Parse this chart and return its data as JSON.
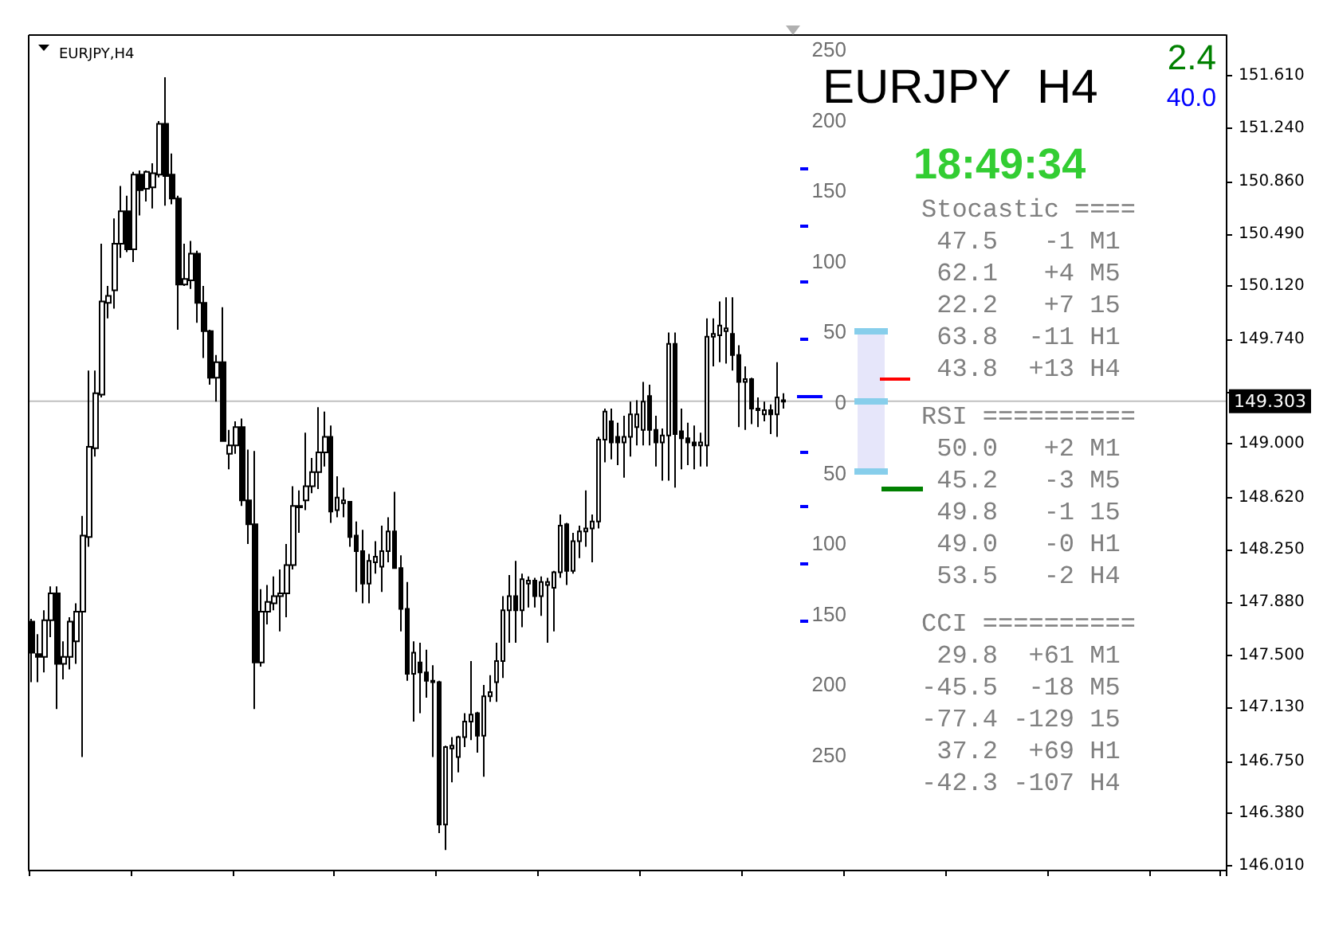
{
  "chart_data": {
    "type": "candlestick",
    "title": "EURJPY,H4",
    "categories": [
      null,
      null,
      null,
      null,
      null,
      null,
      null,
      null,
      null,
      null,
      null,
      null,
      null,
      null,
      null,
      null,
      null,
      null,
      null,
      null,
      null,
      null,
      null,
      null,
      null,
      null,
      null,
      null,
      null,
      null,
      null,
      null,
      null,
      null,
      null,
      null,
      null,
      null,
      null,
      null,
      null,
      null,
      null,
      null,
      null,
      null,
      null,
      null,
      null,
      null,
      null,
      null,
      null,
      null,
      null,
      null,
      null,
      null,
      null,
      null,
      null,
      null,
      null,
      null,
      null,
      null,
      null,
      null,
      null,
      null,
      null,
      null,
      null,
      null,
      null,
      null,
      null,
      null,
      null,
      null,
      null,
      null,
      null,
      null,
      null,
      null,
      null,
      null,
      null,
      null,
      null,
      null,
      null,
      null,
      null,
      null,
      null,
      null,
      null,
      null,
      null,
      null,
      null,
      null,
      null,
      null,
      null,
      null,
      null,
      null,
      null,
      null,
      null,
      null,
      null,
      null,
      null,
      null,
      null,
      null,
      null,
      null,
      null,
      null,
      null,
      null,
      null,
      null,
      null,
      null,
      null,
      null,
      null,
      null,
      null,
      null,
      null,
      null,
      null,
      null,
      null,
      null,
      null,
      null,
      null,
      null,
      null,
      null,
      null,
      null,
      null,
      null,
      null,
      null,
      null,
      null,
      null,
      null,
      null,
      null,
      null,
      null,
      null,
      null,
      null,
      null,
      null,
      null,
      null,
      null,
      null,
      null,
      null,
      null,
      null,
      null,
      null,
      null,
      null,
      null,
      null,
      null,
      null,
      null,
      null,
      null,
      null,
      null
    ],
    "ohlc": [
      [
        147.74,
        147.76,
        147.31,
        147.52
      ],
      [
        147.51,
        147.65,
        147.31,
        147.49
      ],
      [
        147.49,
        147.82,
        147.38,
        147.75
      ],
      [
        147.75,
        147.99,
        147.63,
        147.94
      ],
      [
        147.94,
        147.99,
        147.12,
        147.44
      ],
      [
        147.44,
        147.6,
        147.33,
        147.49
      ],
      [
        147.49,
        147.77,
        147.4,
        147.74
      ],
      [
        147.6,
        147.87,
        147.44,
        147.81
      ],
      [
        147.81,
        148.49,
        146.78,
        148.35
      ],
      [
        148.34,
        149.52,
        148.27,
        148.98
      ],
      [
        148.97,
        149.52,
        148.91,
        149.36
      ],
      [
        149.35,
        150.42,
        149.33,
        150.01
      ],
      [
        150.0,
        150.12,
        149.89,
        150.05
      ],
      [
        150.09,
        150.6,
        149.96,
        150.42
      ],
      [
        150.42,
        150.83,
        150.32,
        150.65
      ],
      [
        150.65,
        150.76,
        150.36,
        150.38
      ],
      [
        150.38,
        150.93,
        150.29,
        150.91
      ],
      [
        150.91,
        150.94,
        150.62,
        150.8
      ],
      [
        150.81,
        150.94,
        150.72,
        150.93
      ],
      [
        150.82,
        150.99,
        150.67,
        150.92
      ],
      [
        150.91,
        151.29,
        150.89,
        151.27
      ],
      [
        151.27,
        151.6,
        150.69,
        150.9
      ],
      [
        150.91,
        151.06,
        150.7,
        150.74
      ],
      [
        150.74,
        150.76,
        149.81,
        150.13
      ],
      [
        150.13,
        150.42,
        150.12,
        150.17
      ],
      [
        150.16,
        150.44,
        150.1,
        150.35
      ],
      [
        150.35,
        150.37,
        149.86,
        150.0
      ],
      [
        150.0,
        150.12,
        149.61,
        149.8
      ],
      [
        149.8,
        149.81,
        149.42,
        149.47
      ],
      [
        149.47,
        149.63,
        149.3,
        149.58
      ],
      [
        149.58,
        149.97,
        149.02,
        149.02
      ],
      [
        148.93,
        149.1,
        148.82,
        148.99
      ],
      [
        148.99,
        149.16,
        148.93,
        149.12
      ],
      [
        149.12,
        149.18,
        148.56,
        148.6
      ],
      [
        148.6,
        148.96,
        148.29,
        148.43
      ],
      [
        148.43,
        148.95,
        147.12,
        147.45
      ],
      [
        147.45,
        147.97,
        147.42,
        147.81
      ],
      [
        147.81,
        148.0,
        147.72,
        147.88
      ],
      [
        147.87,
        148.06,
        147.82,
        147.92
      ],
      [
        147.92,
        148.11,
        147.67,
        147.94
      ],
      [
        147.94,
        148.29,
        147.77,
        148.14
      ],
      [
        148.14,
        148.7,
        148.11,
        148.56
      ],
      [
        148.55,
        148.67,
        148.37,
        148.56
      ],
      [
        148.6,
        149.08,
        148.53,
        148.7
      ],
      [
        148.7,
        148.9,
        148.65,
        148.8
      ],
      [
        148.8,
        149.26,
        148.68,
        148.94
      ],
      [
        148.94,
        149.23,
        148.84,
        149.05
      ],
      [
        149.05,
        149.13,
        148.44,
        148.52
      ],
      [
        148.53,
        148.77,
        148.48,
        148.62
      ],
      [
        148.58,
        148.69,
        148.48,
        148.6
      ],
      [
        148.59,
        148.59,
        148.27,
        148.34
      ],
      [
        148.35,
        148.45,
        147.95,
        148.24
      ],
      [
        148.24,
        148.39,
        147.87,
        148.01
      ],
      [
        148.01,
        148.22,
        147.87,
        148.17
      ],
      [
        148.16,
        148.31,
        148.08,
        148.2
      ],
      [
        148.13,
        148.42,
        147.95,
        148.24
      ],
      [
        148.24,
        148.48,
        148.16,
        148.38
      ],
      [
        148.38,
        148.66,
        148.12,
        148.12
      ],
      [
        148.12,
        148.21,
        147.67,
        147.83
      ],
      [
        147.83,
        148.02,
        147.32,
        147.37
      ],
      [
        147.37,
        147.6,
        147.03,
        147.52
      ],
      [
        147.45,
        147.59,
        147.09,
        147.38
      ],
      [
        147.38,
        147.54,
        147.2,
        147.32
      ],
      [
        147.32,
        147.43,
        146.78,
        147.31
      ],
      [
        147.31,
        147.32,
        146.24,
        146.3
      ],
      [
        146.3,
        146.86,
        146.12,
        146.85
      ],
      [
        146.84,
        146.92,
        146.6,
        146.86
      ],
      [
        146.78,
        146.93,
        146.67,
        146.92
      ],
      [
        146.92,
        147.09,
        146.85,
        147.03
      ],
      [
        147.03,
        147.46,
        146.9,
        147.08
      ],
      [
        147.09,
        147.1,
        146.81,
        146.93
      ],
      [
        146.93,
        147.29,
        146.64,
        147.21
      ],
      [
        147.21,
        147.36,
        147.17,
        147.24
      ],
      [
        147.31,
        147.59,
        147.17,
        147.46
      ],
      [
        147.46,
        147.92,
        147.34,
        147.82
      ],
      [
        147.82,
        148.07,
        147.59,
        147.92
      ],
      [
        147.92,
        148.17,
        147.59,
        147.82
      ],
      [
        147.82,
        148.08,
        147.7,
        148.04
      ],
      [
        148.01,
        148.06,
        147.84,
        148.03
      ],
      [
        148.03,
        148.05,
        147.84,
        147.92
      ],
      [
        147.92,
        148.06,
        147.78,
        148.02
      ],
      [
        148.0,
        148.05,
        147.59,
        148.02
      ],
      [
        147.98,
        148.1,
        147.67,
        148.09
      ],
      [
        148.09,
        148.5,
        148.05,
        148.42
      ],
      [
        148.43,
        148.44,
        148.0,
        148.1
      ],
      [
        148.1,
        148.37,
        148.08,
        148.31
      ],
      [
        148.31,
        148.42,
        148.19,
        148.38
      ],
      [
        148.38,
        148.67,
        148.27,
        148.4
      ],
      [
        148.4,
        148.5,
        148.16,
        148.45
      ],
      [
        148.45,
        149.05,
        148.4,
        149.03
      ],
      [
        149.03,
        149.25,
        148.87,
        149.23
      ],
      [
        149.16,
        149.25,
        148.89,
        149.01
      ],
      [
        149.05,
        149.15,
        148.85,
        149.01
      ],
      [
        149.01,
        149.2,
        148.76,
        149.05
      ],
      [
        149.05,
        149.3,
        148.91,
        149.21
      ],
      [
        149.12,
        149.31,
        148.99,
        149.21
      ],
      [
        149.1,
        149.44,
        148.99,
        149.3
      ],
      [
        149.34,
        149.42,
        148.99,
        149.1
      ],
      [
        149.1,
        149.2,
        148.84,
        149.01
      ],
      [
        149.01,
        149.11,
        148.74,
        149.06
      ],
      [
        149.06,
        149.79,
        148.74,
        149.71
      ],
      [
        149.71,
        149.79,
        148.69,
        149.07
      ],
      [
        149.09,
        149.25,
        148.82,
        149.04
      ],
      [
        149.04,
        149.15,
        148.85,
        149.01
      ],
      [
        149.01,
        149.13,
        148.82,
        148.99
      ],
      [
        148.99,
        149.08,
        148.84,
        149.01
      ],
      [
        148.99,
        149.89,
        148.84,
        149.76
      ],
      [
        149.76,
        149.89,
        149.55,
        149.78
      ],
      [
        149.77,
        150.01,
        149.58,
        149.84
      ],
      [
        149.8,
        150.04,
        149.57,
        149.82
      ],
      [
        149.78,
        150.04,
        149.52,
        149.63
      ],
      [
        149.63,
        149.7,
        149.12,
        149.44
      ],
      [
        149.44,
        149.55,
        149.1,
        149.46
      ],
      [
        149.46,
        149.47,
        149.14,
        149.25
      ],
      [
        149.25,
        149.33,
        149.12,
        149.24
      ],
      [
        149.21,
        149.3,
        149.16,
        149.24
      ],
      [
        149.24,
        149.28,
        149.07,
        149.21
      ],
      [
        149.21,
        149.58,
        149.05,
        149.33
      ],
      [
        149.31,
        149.36,
        149.25,
        149.3
      ],
      null,
      null,
      null,
      null,
      null,
      null,
      null,
      null,
      null,
      null,
      null,
      null,
      null,
      null,
      null,
      null,
      null,
      null,
      null,
      null,
      null,
      null,
      null,
      null,
      null,
      null,
      null,
      null,
      null,
      null,
      null,
      null,
      null,
      null,
      null,
      null,
      null,
      null,
      null,
      null,
      null,
      null,
      null,
      null,
      null,
      null,
      null,
      null,
      null,
      null,
      null,
      null,
      null,
      null,
      null,
      null,
      null,
      null,
      null,
      null,
      null,
      null,
      null,
      null,
      null,
      null,
      null,
      null,
      null
    ],
    "ylim": [
      145.98,
      151.9
    ],
    "yticks": [
      {
        "value": 146.01,
        "label": "146.010"
      },
      {
        "value": 146.38,
        "label": "146.380"
      },
      {
        "value": 146.75,
        "label": "146.750"
      },
      {
        "value": 147.13,
        "label": "147.130"
      },
      {
        "value": 147.5,
        "label": "147.500"
      },
      {
        "value": 147.88,
        "label": "147.880"
      },
      {
        "value": 148.25,
        "label": "148.250"
      },
      {
        "value": 148.62,
        "label": "148.620"
      },
      {
        "value": 149,
        "label": "149.000"
      },
      {
        "value": 149.37,
        "label": null
      },
      {
        "value": 149.74,
        "label": "149.740"
      },
      {
        "value": 150.12,
        "label": "150.120"
      },
      {
        "value": 150.49,
        "label": "150.490"
      },
      {
        "value": 150.86,
        "label": "150.860"
      },
      {
        "value": 151.24,
        "label": "151.240"
      },
      {
        "value": 151.61,
        "label": "151.610"
      }
    ],
    "ref_lines": [
      {
        "axis": "y",
        "value": 149.303,
        "label": "149.303",
        "color": "#c0c0c0"
      }
    ],
    "tick_labels": "y",
    "annotations": [
      "EURJPY  H4",
      "2.4",
      "40.0",
      "18:49:34",
      "Stocastic ====",
      " 47.5   -1 M1",
      " 62.1   +4 M5",
      " 22.2   +7 15",
      " 63.8  -11 H1",
      " 43.8  +13 H4",
      "RSI ==========",
      " 50.0   +2 M1",
      " 45.2   -3 M5",
      " 49.8   -1 15",
      " 49.0   -0 H1",
      " 53.5   -2 H4",
      "CCI ==========",
      " 29.8  +61 M1",
      "-45.5  -18 M5",
      "-77.4 -129 15",
      " 37.2  +69 H1",
      "-42.3 -107 H4",
      "250",
      "200",
      "150",
      "100",
      "50",
      "0",
      "50",
      "100",
      "150",
      "200",
      "250"
    ]
  }
}
